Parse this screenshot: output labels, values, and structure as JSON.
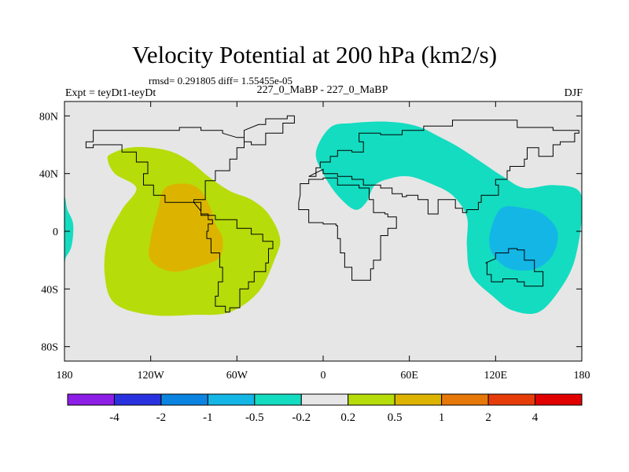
{
  "chart_data": {
    "type": "contour-map",
    "title": "Velocity Potential at 200 hPa (km2/s)",
    "stats": "rmsd= 0.291805 diff= 1.55455e-05",
    "experiment": "Expt = teyDt1-teyDt",
    "experiment_names": "227_0_MaBP - 227_0_MaBP",
    "season": "DJF",
    "lon_range": [
      -180,
      180
    ],
    "lat_range": [
      -90,
      90
    ],
    "x_ticks": [
      {
        "value": -180,
        "label": "180"
      },
      {
        "value": -120,
        "label": "120W"
      },
      {
        "value": -60,
        "label": "60W"
      },
      {
        "value": 0,
        "label": "0"
      },
      {
        "value": 60,
        "label": "60E"
      },
      {
        "value": 120,
        "label": "120E"
      },
      {
        "value": 180,
        "label": "180"
      }
    ],
    "y_ticks": [
      {
        "value": 80,
        "label": "80N"
      },
      {
        "value": 40,
        "label": "40N"
      },
      {
        "value": 0,
        "label": "0"
      },
      {
        "value": -40,
        "label": "40S"
      },
      {
        "value": -80,
        "label": "80S"
      }
    ],
    "colorbar": {
      "colors": [
        "#8c1ee6",
        "#2a32e0",
        "#0a84e0",
        "#14b6e6",
        "#14dcc0",
        "#e6e6e6",
        "#b6dc0a",
        "#dcb400",
        "#e6780a",
        "#e63c0a",
        "#e10000"
      ],
      "labels": [
        "-4",
        "-2",
        "-1",
        "-0.5",
        "-0.2",
        "0.2",
        "0.5",
        "1",
        "2",
        "4"
      ]
    },
    "regions": [
      {
        "name": "positive-0.2-0.5-pacific",
        "level": 0.35,
        "color": "#b6dc0a",
        "points": [
          [
            -147,
            54
          ],
          [
            -135,
            58
          ],
          [
            -120,
            58
          ],
          [
            -105,
            55
          ],
          [
            -92,
            48
          ],
          [
            -80,
            38
          ],
          [
            -65,
            28
          ],
          [
            -50,
            22
          ],
          [
            -38,
            12
          ],
          [
            -30,
            -5
          ],
          [
            -34,
            -20
          ],
          [
            -45,
            -42
          ],
          [
            -65,
            -56
          ],
          [
            -90,
            -58
          ],
          [
            -120,
            -58
          ],
          [
            -145,
            -50
          ],
          [
            -152,
            -30
          ],
          [
            -150,
            -5
          ],
          [
            -140,
            15
          ],
          [
            -130,
            30
          ],
          [
            -145,
            40
          ],
          [
            -150,
            50
          ]
        ]
      },
      {
        "name": "positive-0.5-1-east-pacific",
        "level": 0.75,
        "color": "#dcb400",
        "points": [
          [
            -110,
            30
          ],
          [
            -95,
            33
          ],
          [
            -85,
            28
          ],
          [
            -78,
            15
          ],
          [
            -75,
            5
          ],
          [
            -70,
            -5
          ],
          [
            -72,
            -18
          ],
          [
            -85,
            -24
          ],
          [
            -105,
            -28
          ],
          [
            -120,
            -20
          ],
          [
            -120,
            -5
          ],
          [
            -115,
            15
          ]
        ]
      },
      {
        "name": "negative-0.2-0.5-eurasia",
        "level": -0.35,
        "color": "#14dcc0",
        "points": [
          [
            5,
            72
          ],
          [
            20,
            75
          ],
          [
            45,
            76
          ],
          [
            65,
            73
          ],
          [
            80,
            66
          ],
          [
            95,
            58
          ],
          [
            110,
            48
          ],
          [
            125,
            38
          ],
          [
            140,
            30
          ],
          [
            160,
            32
          ],
          [
            178,
            28
          ],
          [
            180,
            10
          ],
          [
            175,
            -20
          ],
          [
            165,
            -40
          ],
          [
            150,
            -56
          ],
          [
            132,
            -55
          ],
          [
            118,
            -45
          ],
          [
            103,
            -30
          ],
          [
            100,
            -10
          ],
          [
            100,
            10
          ],
          [
            90,
            25
          ],
          [
            75,
            33
          ],
          [
            60,
            38
          ],
          [
            48,
            37
          ],
          [
            36,
            32
          ],
          [
            30,
            20
          ],
          [
            22,
            15
          ],
          [
            10,
            25
          ],
          [
            0,
            40
          ],
          [
            -5,
            55
          ]
        ]
      },
      {
        "name": "negative-0.2-0.5-west-pacific-edge",
        "level": -0.35,
        "color": "#14dcc0",
        "points": [
          [
            -180,
            22
          ],
          [
            -178,
            15
          ],
          [
            -174,
            5
          ],
          [
            -175,
            -10
          ],
          [
            -179,
            -18
          ],
          [
            -180,
            -20
          ]
        ]
      },
      {
        "name": "negative-0.5-1-west-pacific",
        "level": -0.75,
        "color": "#14b6e6",
        "points": [
          [
            124,
            16
          ],
          [
            140,
            16
          ],
          [
            153,
            12
          ],
          [
            163,
            0
          ],
          [
            160,
            -16
          ],
          [
            148,
            -26
          ],
          [
            130,
            -26
          ],
          [
            118,
            -16
          ],
          [
            116,
            -2
          ]
        ]
      }
    ],
    "coastlines": [
      [
        [
          -45,
          74
        ],
        [
          -40,
          78
        ],
        [
          -25,
          80
        ],
        [
          -20,
          75
        ],
        [
          -28,
          68
        ],
        [
          -40,
          60
        ],
        [
          -50,
          62
        ],
        [
          -55,
          70
        ]
      ],
      [
        [
          -60,
          65
        ],
        [
          -55,
          58
        ],
        [
          -60,
          50
        ],
        [
          -65,
          42
        ],
        [
          -75,
          35
        ],
        [
          -82,
          28
        ],
        [
          -82,
          22
        ],
        [
          -90,
          20
        ],
        [
          -97,
          20
        ],
        [
          -105,
          20
        ],
        [
          -110,
          25
        ],
        [
          -118,
          32
        ],
        [
          -125,
          40
        ],
        [
          -122,
          48
        ],
        [
          -130,
          55
        ],
        [
          -140,
          60
        ],
        [
          -150,
          60
        ],
        [
          -160,
          58
        ],
        [
          -165,
          62
        ],
        [
          -160,
          70
        ],
        [
          -140,
          70
        ],
        [
          -120,
          70
        ],
        [
          -100,
          72
        ],
        [
          -85,
          70
        ],
        [
          -70,
          68
        ]
      ],
      [
        [
          -90,
          20
        ],
        [
          -85,
          12
        ],
        [
          -80,
          8
        ],
        [
          -77,
          5
        ],
        [
          -80,
          0
        ],
        [
          -81,
          -5
        ],
        [
          -78,
          -15
        ],
        [
          -72,
          -25
        ],
        [
          -70,
          -35
        ],
        [
          -73,
          -45
        ],
        [
          -75,
          -52
        ],
        [
          -68,
          -56
        ],
        [
          -65,
          -53
        ],
        [
          -58,
          -40
        ],
        [
          -52,
          -35
        ],
        [
          -48,
          -28
        ],
        [
          -40,
          -22
        ],
        [
          -38,
          -12
        ],
        [
          -35,
          -7
        ],
        [
          -42,
          -2
        ],
        [
          -50,
          2
        ],
        [
          -60,
          8
        ],
        [
          -75,
          11
        ],
        [
          -85,
          14
        ]
      ],
      [
        [
          -10,
          38
        ],
        [
          -5,
          44
        ],
        [
          -2,
          48
        ],
        [
          5,
          52
        ],
        [
          10,
          56
        ],
        [
          20,
          55
        ],
        [
          28,
          62
        ],
        [
          25,
          68
        ],
        [
          40,
          67
        ],
        [
          55,
          70
        ],
        [
          70,
          73
        ],
        [
          90,
          77
        ],
        [
          110,
          77
        ],
        [
          135,
          72
        ],
        [
          160,
          70
        ],
        [
          178,
          68
        ],
        [
          175,
          62
        ],
        [
          165,
          60
        ],
        [
          160,
          52
        ],
        [
          150,
          58
        ],
        [
          142,
          50
        ],
        [
          140,
          45
        ],
        [
          130,
          42
        ],
        [
          128,
          36
        ],
        [
          120,
          32
        ],
        [
          122,
          25
        ],
        [
          110,
          20
        ],
        [
          108,
          15
        ],
        [
          100,
          13
        ],
        [
          97,
          16
        ],
        [
          92,
          22
        ],
        [
          80,
          12
        ],
        [
          73,
          22
        ],
        [
          66,
          25
        ],
        [
          58,
          24
        ],
        [
          55,
          26
        ],
        [
          48,
          30
        ],
        [
          40,
          32
        ],
        [
          35,
          32
        ],
        [
          28,
          36
        ],
        [
          20,
          38
        ],
        [
          10,
          40
        ],
        [
          0,
          43
        ]
      ],
      [
        [
          -17,
          20
        ],
        [
          -17,
          15
        ],
        [
          -10,
          6
        ],
        [
          0,
          5
        ],
        [
          9,
          4
        ],
        [
          10,
          -5
        ],
        [
          12,
          -15
        ],
        [
          15,
          -25
        ],
        [
          20,
          -34
        ],
        [
          27,
          -34
        ],
        [
          33,
          -26
        ],
        [
          35,
          -20
        ],
        [
          40,
          -12
        ],
        [
          40,
          -3
        ],
        [
          45,
          2
        ],
        [
          51,
          10
        ],
        [
          45,
          12
        ],
        [
          43,
          13
        ],
        [
          35,
          22
        ],
        [
          32,
          30
        ],
        [
          25,
          32
        ],
        [
          10,
          37
        ],
        [
          0,
          36
        ],
        [
          -10,
          33
        ],
        [
          -16,
          25
        ]
      ],
      [
        [
          113,
          -22
        ],
        [
          114,
          -30
        ],
        [
          117,
          -35
        ],
        [
          125,
          -33
        ],
        [
          135,
          -35
        ],
        [
          140,
          -38
        ],
        [
          148,
          -38
        ],
        [
          153,
          -28
        ],
        [
          147,
          -20
        ],
        [
          140,
          -13
        ],
        [
          135,
          -12
        ],
        [
          129,
          -15
        ],
        [
          120,
          -19
        ]
      ]
    ]
  }
}
